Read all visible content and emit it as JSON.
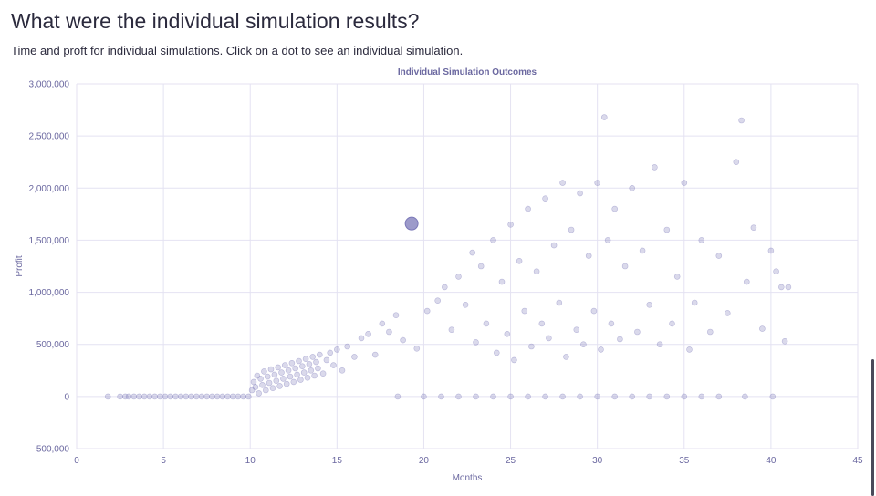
{
  "header": {
    "title": "What were the individual simulation results?",
    "subtitle": "Time and proft for individual simulations. Click on a dot to see an individual simulation."
  },
  "colors": {
    "dot": "#7b78b8",
    "highlight": "#7b78b8",
    "grid": "#e4e2f2",
    "axis_text": "#6b68a0"
  },
  "chart_data": {
    "type": "scatter",
    "title": "Individual Simulation Outcomes",
    "xlabel": "Months",
    "ylabel": "Profit",
    "xlim": [
      0,
      45
    ],
    "ylim": [
      -500000,
      3000000
    ],
    "x_ticks": [
      0,
      5,
      10,
      15,
      20,
      25,
      30,
      35,
      40,
      45
    ],
    "y_ticks": [
      -500000,
      0,
      500000,
      1000000,
      1500000,
      2000000,
      2500000,
      3000000
    ],
    "y_tick_labels": [
      "-500,000",
      "0",
      "500,000",
      "1,000,000",
      "1,500,000",
      "2,000,000",
      "2,500,000",
      "3,000,000"
    ],
    "grid": true,
    "highlighted_point": {
      "x": 19.3,
      "y": 1660000
    },
    "points": [
      [
        1.8,
        0
      ],
      [
        2.5,
        0
      ],
      [
        2.8,
        0
      ],
      [
        3.0,
        0
      ],
      [
        3.3,
        0
      ],
      [
        3.6,
        0
      ],
      [
        3.9,
        0
      ],
      [
        4.2,
        0
      ],
      [
        4.5,
        0
      ],
      [
        4.8,
        0
      ],
      [
        5.1,
        0
      ],
      [
        5.4,
        0
      ],
      [
        5.7,
        0
      ],
      [
        6.0,
        0
      ],
      [
        6.3,
        0
      ],
      [
        6.6,
        0
      ],
      [
        6.9,
        0
      ],
      [
        7.2,
        0
      ],
      [
        7.5,
        0
      ],
      [
        7.8,
        0
      ],
      [
        8.1,
        0
      ],
      [
        8.4,
        0
      ],
      [
        8.7,
        0
      ],
      [
        9.0,
        0
      ],
      [
        9.3,
        0
      ],
      [
        9.6,
        0
      ],
      [
        9.9,
        0
      ],
      [
        10.1,
        60000
      ],
      [
        10.2,
        140000
      ],
      [
        10.3,
        90000
      ],
      [
        10.4,
        200000
      ],
      [
        10.5,
        30000
      ],
      [
        10.6,
        170000
      ],
      [
        10.7,
        110000
      ],
      [
        10.8,
        240000
      ],
      [
        10.9,
        60000
      ],
      [
        11.0,
        190000
      ],
      [
        11.1,
        130000
      ],
      [
        11.2,
        260000
      ],
      [
        11.3,
        80000
      ],
      [
        11.4,
        210000
      ],
      [
        11.5,
        150000
      ],
      [
        11.6,
        280000
      ],
      [
        11.7,
        100000
      ],
      [
        11.8,
        230000
      ],
      [
        11.9,
        170000
      ],
      [
        12.0,
        300000
      ],
      [
        12.1,
        120000
      ],
      [
        12.2,
        250000
      ],
      [
        12.3,
        190000
      ],
      [
        12.4,
        320000
      ],
      [
        12.5,
        140000
      ],
      [
        12.6,
        270000
      ],
      [
        12.7,
        210000
      ],
      [
        12.8,
        340000
      ],
      [
        12.9,
        160000
      ],
      [
        13.0,
        290000
      ],
      [
        13.1,
        230000
      ],
      [
        13.2,
        360000
      ],
      [
        13.3,
        180000
      ],
      [
        13.4,
        310000
      ],
      [
        13.5,
        250000
      ],
      [
        13.6,
        380000
      ],
      [
        13.7,
        200000
      ],
      [
        13.8,
        330000
      ],
      [
        13.9,
        270000
      ],
      [
        14.0,
        400000
      ],
      [
        14.2,
        220000
      ],
      [
        14.4,
        350000
      ],
      [
        14.6,
        420000
      ],
      [
        14.8,
        300000
      ],
      [
        15.0,
        450000
      ],
      [
        15.3,
        250000
      ],
      [
        15.6,
        480000
      ],
      [
        16.0,
        380000
      ],
      [
        16.4,
        560000
      ],
      [
        16.8,
        600000
      ],
      [
        17.2,
        400000
      ],
      [
        17.6,
        700000
      ],
      [
        18.0,
        620000
      ],
      [
        18.4,
        780000
      ],
      [
        18.8,
        540000
      ],
      [
        19.6,
        460000
      ],
      [
        20.2,
        820000
      ],
      [
        20.8,
        920000
      ],
      [
        21.2,
        1050000
      ],
      [
        21.6,
        640000
      ],
      [
        22.0,
        1150000
      ],
      [
        22.4,
        880000
      ],
      [
        22.8,
        1380000
      ],
      [
        23.0,
        520000
      ],
      [
        23.3,
        1250000
      ],
      [
        23.6,
        700000
      ],
      [
        24.0,
        1500000
      ],
      [
        24.2,
        420000
      ],
      [
        24.5,
        1100000
      ],
      [
        24.8,
        600000
      ],
      [
        25.0,
        1650000
      ],
      [
        25.2,
        350000
      ],
      [
        25.5,
        1300000
      ],
      [
        25.8,
        820000
      ],
      [
        26.0,
        1800000
      ],
      [
        26.2,
        480000
      ],
      [
        26.5,
        1200000
      ],
      [
        26.8,
        700000
      ],
      [
        27.0,
        1900000
      ],
      [
        27.2,
        560000
      ],
      [
        27.5,
        1450000
      ],
      [
        27.8,
        900000
      ],
      [
        28.0,
        2050000
      ],
      [
        28.2,
        380000
      ],
      [
        28.5,
        1600000
      ],
      [
        28.8,
        640000
      ],
      [
        29.0,
        1950000
      ],
      [
        29.2,
        500000
      ],
      [
        29.5,
        1350000
      ],
      [
        29.8,
        820000
      ],
      [
        30.0,
        2050000
      ],
      [
        30.2,
        450000
      ],
      [
        30.4,
        2680000
      ],
      [
        30.6,
        1500000
      ],
      [
        30.8,
        700000
      ],
      [
        31.0,
        1800000
      ],
      [
        31.3,
        550000
      ],
      [
        31.6,
        1250000
      ],
      [
        32.0,
        2000000
      ],
      [
        32.3,
        620000
      ],
      [
        32.6,
        1400000
      ],
      [
        33.0,
        880000
      ],
      [
        33.3,
        2200000
      ],
      [
        33.6,
        500000
      ],
      [
        34.0,
        1600000
      ],
      [
        34.3,
        700000
      ],
      [
        34.6,
        1150000
      ],
      [
        35.0,
        2050000
      ],
      [
        35.3,
        450000
      ],
      [
        35.6,
        900000
      ],
      [
        36.0,
        1500000
      ],
      [
        36.5,
        620000
      ],
      [
        37.0,
        1350000
      ],
      [
        37.5,
        800000
      ],
      [
        38.0,
        2250000
      ],
      [
        38.3,
        2650000
      ],
      [
        38.6,
        1100000
      ],
      [
        39.0,
        1620000
      ],
      [
        39.5,
        650000
      ],
      [
        40.0,
        1400000
      ],
      [
        40.3,
        1200000
      ],
      [
        40.6,
        1050000
      ],
      [
        41.0,
        1050000
      ],
      [
        40.8,
        530000
      ],
      [
        18.5,
        0
      ],
      [
        20.0,
        0
      ],
      [
        21.0,
        0
      ],
      [
        22.0,
        0
      ],
      [
        23.0,
        0
      ],
      [
        24.0,
        0
      ],
      [
        25.0,
        0
      ],
      [
        26.0,
        0
      ],
      [
        27.0,
        0
      ],
      [
        28.0,
        0
      ],
      [
        29.0,
        0
      ],
      [
        30.0,
        0
      ],
      [
        31.0,
        0
      ],
      [
        32.0,
        0
      ],
      [
        33.0,
        0
      ],
      [
        34.0,
        0
      ],
      [
        35.0,
        0
      ],
      [
        36.0,
        0
      ],
      [
        37.0,
        0
      ],
      [
        38.5,
        0
      ],
      [
        40.1,
        0
      ]
    ]
  }
}
